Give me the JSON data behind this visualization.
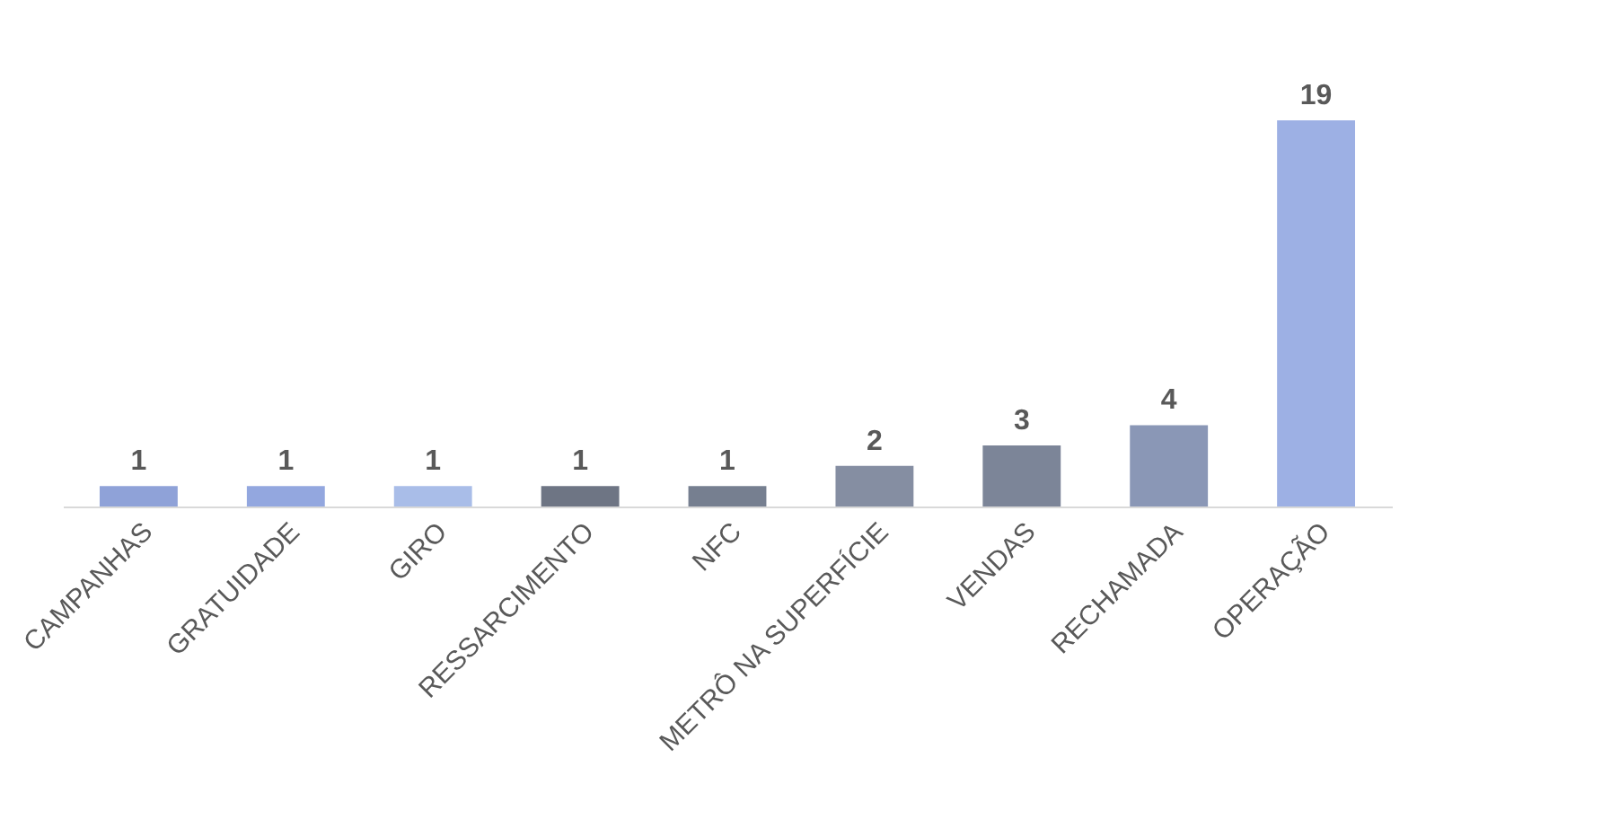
{
  "chart_data": {
    "type": "bar",
    "categories": [
      "CAMPANHAS",
      "GRATUIDADE",
      "GIRO",
      "RESSARCIMENTO",
      "NFC",
      "METRÔ NA SUPERFÍCIE",
      "VENDAS",
      "RECHAMADA",
      "OPERAÇÃO"
    ],
    "values": [
      1,
      1,
      1,
      1,
      1,
      2,
      3,
      4,
      19
    ],
    "colors": [
      "#8fa2d8",
      "#93a7df",
      "#a9bde8",
      "#6e7584",
      "#767f90",
      "#858ea2",
      "#7c8598",
      "#8a97b6",
      "#9db0e4"
    ],
    "data_labels": true,
    "grid": false
  }
}
